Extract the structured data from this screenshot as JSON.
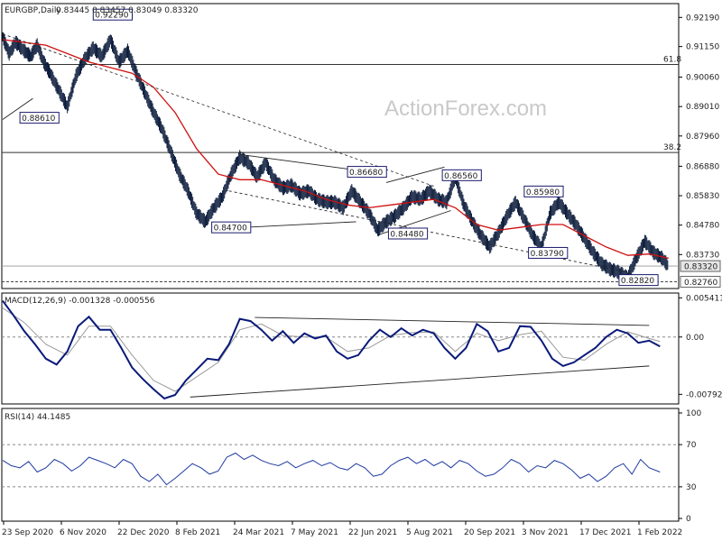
{
  "chart_data": {
    "type": "line",
    "main": {
      "title": "EURGBP,Daily",
      "ohlc_readout": "0.83445 0.83457 0.83049 0.83320",
      "watermark": "ActionForex.com",
      "ylim": [
        0.8255,
        0.9265
      ],
      "y_ticks": [
        "0.92190",
        "0.91150",
        "0.90060",
        "0.89010",
        "0.87960",
        "0.86880",
        "0.85830",
        "0.84780",
        "0.83730"
      ],
      "x_ticks": [
        "23 Sep 2020",
        "6 Nov 2020",
        "22 Dec 2020",
        "8 Feb 2021",
        "24 Mar 2021",
        "7 May 2021",
        "22 Jun 2021",
        "5 Aug 2021",
        "20 Sep 2021",
        "3 Nov 2021",
        "17 Dec 2021",
        "1 Feb 2022"
      ],
      "current_price": "0.83320",
      "low_marker": "0.82760",
      "fib_levels": [
        {
          "label": "61.8",
          "value": 0.9051
        },
        {
          "label": "38.2",
          "value": 0.8737
        }
      ],
      "price_series": {
        "name": "",
        "x": [
          0,
          3,
          6,
          10,
          13,
          16,
          19,
          22,
          26,
          30,
          34,
          38,
          42,
          46,
          50,
          54,
          58,
          62,
          66,
          70,
          74,
          78,
          82,
          86,
          90,
          94,
          98,
          102,
          106,
          110,
          114,
          118,
          122,
          126,
          130,
          134,
          138,
          142,
          146,
          150,
          154,
          158,
          162,
          166,
          170,
          174,
          178,
          182,
          186,
          190,
          194,
          198,
          202,
          206,
          210,
          214,
          218,
          222,
          226,
          230,
          234,
          238,
          242,
          246,
          250,
          254,
          258,
          262,
          266,
          270,
          274,
          278,
          282,
          286,
          290,
          294,
          298,
          302,
          306,
          309
        ],
        "values": [
          0.915,
          0.909,
          0.913,
          0.91,
          0.908,
          0.912,
          0.906,
          0.902,
          0.896,
          0.89,
          0.901,
          0.907,
          0.911,
          0.908,
          0.914,
          0.906,
          0.91,
          0.902,
          0.895,
          0.888,
          0.882,
          0.874,
          0.866,
          0.86,
          0.852,
          0.849,
          0.854,
          0.858,
          0.866,
          0.872,
          0.87,
          0.865,
          0.87,
          0.864,
          0.861,
          0.862,
          0.859,
          0.86,
          0.857,
          0.856,
          0.856,
          0.854,
          0.86,
          0.856,
          0.852,
          0.846,
          0.849,
          0.851,
          0.854,
          0.858,
          0.857,
          0.86,
          0.857,
          0.856,
          0.865,
          0.855,
          0.849,
          0.844,
          0.84,
          0.845,
          0.851,
          0.856,
          0.85,
          0.844,
          0.8398,
          0.852,
          0.856,
          0.852,
          0.848,
          0.843,
          0.838,
          0.834,
          0.832,
          0.831,
          0.829,
          0.836,
          0.842,
          0.838,
          0.836,
          0.8332
        ]
      },
      "ma_series": {
        "name": "",
        "x": [
          0,
          20,
          40,
          50,
          60,
          70,
          80,
          90,
          100,
          110,
          120,
          130,
          140,
          150,
          160,
          170,
          180,
          190,
          200,
          210,
          220,
          230,
          240,
          250,
          260,
          270,
          280,
          290,
          300,
          309
        ],
        "values": [
          0.914,
          0.912,
          0.906,
          0.904,
          0.902,
          0.897,
          0.888,
          0.875,
          0.866,
          0.864,
          0.864,
          0.862,
          0.86,
          0.857,
          0.855,
          0.854,
          0.855,
          0.856,
          0.857,
          0.854,
          0.848,
          0.846,
          0.847,
          0.848,
          0.848,
          0.844,
          0.84,
          0.837,
          0.8375,
          0.836
        ]
      },
      "swing_labels": [
        {
          "text": "0.92290",
          "x": 42,
          "y": 0.9229
        },
        {
          "text": "0.88610",
          "x": 8,
          "y": 0.8861
        },
        {
          "text": "0.84700",
          "x": 97,
          "y": 0.847
        },
        {
          "text": "0.86680",
          "x": 160,
          "y": 0.8668
        },
        {
          "text": "0.84480",
          "x": 179,
          "y": 0.8448
        },
        {
          "text": "0.86560",
          "x": 204,
          "y": 0.8656
        },
        {
          "text": "0.85980",
          "x": 242,
          "y": 0.8598
        },
        {
          "text": "0.83790",
          "x": 244,
          "y": 0.8379
        },
        {
          "text": "0.82820",
          "x": 286,
          "y": 0.8282
        }
      ],
      "trendlines": [
        {
          "from": [
            0,
            0.916
          ],
          "to": [
            200,
            0.8617
          ]
        },
        {
          "from": [
            105,
            0.86
          ],
          "to": [
            290,
            0.831
          ]
        },
        {
          "from": [
            110,
            0.873
          ],
          "to": [
            178,
            0.866
          ]
        },
        {
          "from": [
            107,
            0.8468
          ],
          "to": [
            164,
            0.849
          ]
        },
        {
          "from": [
            178,
            0.863
          ],
          "to": [
            205,
            0.8685
          ]
        },
        {
          "from": [
            175,
            0.8445
          ],
          "to": [
            208,
            0.853
          ]
        },
        {
          "from": [
            0,
            0.8855
          ],
          "to": [
            14,
            0.893
          ]
        }
      ]
    },
    "macd": {
      "title": "MACD(12,26,9) -0.001328 -0.000556",
      "ylim": [
        -0.009,
        0.0057
      ],
      "y_ticks": [
        "0.005411",
        "0.00",
        "-0.007923"
      ],
      "macd_series": {
        "name": "",
        "x": [
          0,
          5,
          10,
          15,
          20,
          25,
          30,
          35,
          40,
          45,
          50,
          55,
          60,
          65,
          70,
          75,
          80,
          85,
          90,
          95,
          100,
          105,
          110,
          115,
          120,
          125,
          130,
          135,
          140,
          145,
          150,
          155,
          160,
          165,
          170,
          175,
          180,
          185,
          190,
          195,
          200,
          205,
          210,
          215,
          220,
          225,
          230,
          235,
          240,
          245,
          250,
          255,
          260,
          265,
          270,
          275,
          280,
          285,
          290,
          295,
          300,
          305
        ],
        "values": [
          0.005,
          0.003,
          0.0008,
          -0.001,
          -0.003,
          -0.0038,
          -0.002,
          0.0015,
          0.0028,
          0.001,
          0.001,
          -0.0015,
          -0.0042,
          -0.0058,
          -0.0072,
          -0.0085,
          -0.008,
          -0.006,
          -0.0045,
          -0.003,
          -0.0032,
          -0.001,
          0.0025,
          0.0022,
          0.001,
          -0.0005,
          0.0008,
          -0.0008,
          0.0005,
          -0.0002,
          0.0002,
          -0.002,
          -0.003,
          -0.0025,
          -0.0005,
          0.001,
          0.0,
          0.0012,
          0.0002,
          0.001,
          0.0005,
          -0.0015,
          -0.003,
          -0.0015,
          0.0018,
          0.0008,
          -0.002,
          -0.0015,
          0.0015,
          0.0014,
          -0.0005,
          -0.003,
          -0.004,
          -0.0035,
          -0.0025,
          -0.0015,
          0.0,
          0.001,
          0.0005,
          -0.0008,
          -0.0005,
          -0.0013
        ]
      },
      "signal_series": {
        "name": "",
        "x": [
          0,
          10,
          20,
          30,
          40,
          50,
          60,
          70,
          80,
          90,
          100,
          110,
          120,
          130,
          140,
          150,
          160,
          170,
          180,
          190,
          200,
          210,
          220,
          230,
          240,
          250,
          260,
          270,
          280,
          290,
          300,
          305
        ],
        "values": [
          0.004,
          0.002,
          -0.001,
          -0.0025,
          0.0015,
          0.0015,
          -0.0025,
          -0.006,
          -0.0075,
          -0.0055,
          -0.0035,
          0.001,
          0.0018,
          0.0002,
          0.0,
          0.0,
          -0.002,
          -0.0015,
          0.0002,
          0.0006,
          0.0007,
          -0.002,
          0.0005,
          -0.0005,
          0.0003,
          0.0008,
          -0.0028,
          -0.0032,
          -0.001,
          0.0007,
          -0.0002,
          -0.0006
        ]
      },
      "trendlines": [
        {
          "from": [
            117,
            0.0027
          ],
          "to": [
            300,
            0.0016
          ]
        },
        {
          "from": [
            87,
            -0.0083
          ],
          "to": [
            300,
            -0.004
          ]
        }
      ]
    },
    "rsi": {
      "title": "RSI(14) 44.1485",
      "ylim": [
        0,
        100
      ],
      "y_ticks": [
        "100",
        "70",
        "30",
        "0"
      ],
      "levels": [
        70,
        30
      ],
      "rsi_series": {
        "name": "",
        "x": [
          0,
          4,
          8,
          12,
          16,
          20,
          24,
          28,
          32,
          36,
          40,
          44,
          48,
          52,
          56,
          60,
          64,
          68,
          72,
          76,
          80,
          84,
          88,
          92,
          96,
          100,
          104,
          108,
          112,
          116,
          120,
          124,
          128,
          132,
          136,
          140,
          144,
          148,
          152,
          156,
          160,
          164,
          168,
          172,
          176,
          180,
          184,
          188,
          192,
          196,
          200,
          204,
          208,
          212,
          216,
          220,
          224,
          228,
          232,
          236,
          240,
          244,
          248,
          252,
          256,
          260,
          264,
          268,
          272,
          276,
          280,
          284,
          288,
          292,
          296,
          300,
          305
        ],
        "values": [
          55,
          50,
          48,
          54,
          44,
          48,
          56,
          52,
          45,
          50,
          58,
          55,
          52,
          48,
          56,
          52,
          40,
          35,
          42,
          32,
          38,
          45,
          52,
          48,
          42,
          45,
          58,
          62,
          56,
          60,
          55,
          52,
          50,
          54,
          48,
          52,
          55,
          50,
          53,
          48,
          46,
          52,
          48,
          40,
          42,
          50,
          55,
          58,
          52,
          56,
          50,
          54,
          48,
          55,
          52,
          45,
          40,
          42,
          48,
          56,
          52,
          44,
          50,
          48,
          55,
          52,
          46,
          38,
          42,
          35,
          40,
          48,
          52,
          42,
          56,
          48,
          44
        ]
      }
    }
  }
}
